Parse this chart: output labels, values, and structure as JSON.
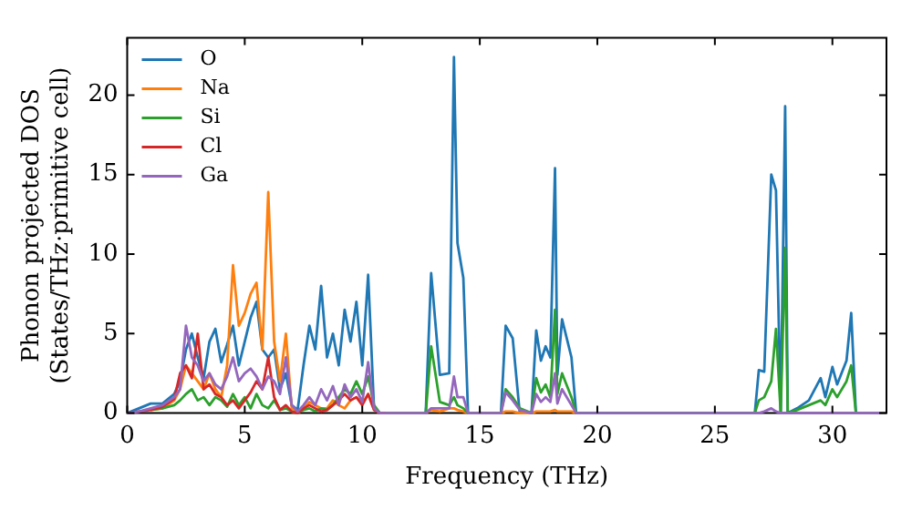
{
  "chart_data": {
    "type": "line",
    "xlabel": "Frequency (THz)",
    "ylabel": "Phonon projected DOS\n(States/THz·primitive cell)",
    "x": [
      0,
      0.5,
      1,
      1.5,
      2,
      2.25,
      2.5,
      2.75,
      3,
      3.25,
      3.5,
      3.75,
      4,
      4.25,
      4.5,
      4.75,
      5,
      5.25,
      5.5,
      5.75,
      6,
      6.25,
      6.5,
      6.75,
      7,
      7.25,
      7.5,
      7.75,
      8,
      8.25,
      8.5,
      8.75,
      9,
      9.25,
      9.5,
      9.75,
      10,
      10.25,
      10.5,
      10.75,
      11,
      12.7,
      12.93,
      13.3,
      13.7,
      13.9,
      14.05,
      14.3,
      14.5,
      15.9,
      16.1,
      16.4,
      16.7,
      17.2,
      17.4,
      17.6,
      17.8,
      18.0,
      18.2,
      18.3,
      18.5,
      18.9,
      19.1,
      26.7,
      26.87,
      27.1,
      27.4,
      27.6,
      27.8,
      27.99,
      28.1,
      28.5,
      29,
      29.5,
      29.7,
      30.0,
      30.2,
      30.6,
      30.8,
      31.0,
      32
    ],
    "series": [
      {
        "name": "O",
        "color": "#1f77b4",
        "values": [
          0,
          0.3,
          0.6,
          0.6,
          1.2,
          2,
          4,
          5,
          3.5,
          2.2,
          4.5,
          5.3,
          3.2,
          4.3,
          5.5,
          3,
          4.5,
          6,
          7,
          4,
          3.5,
          4,
          1.5,
          2.5,
          0.5,
          0.2,
          3,
          5.5,
          4,
          8,
          3.5,
          5,
          3,
          6.5,
          4.5,
          7,
          3,
          8.7,
          0.3,
          0,
          0,
          0,
          8.8,
          2.4,
          2.5,
          22.4,
          10.7,
          8.5,
          0,
          0,
          5.5,
          4.7,
          0,
          0,
          5.2,
          3.3,
          4.2,
          3.5,
          15.4,
          2.4,
          5.9,
          3.5,
          0,
          0,
          2.7,
          2.6,
          15,
          14,
          0,
          19.3,
          0,
          0.3,
          0.8,
          2.2,
          1.0,
          2.9,
          1.8,
          3.3,
          6.3,
          0,
          null
        ]
      },
      {
        "name": "Na",
        "color": "#ff7f0e",
        "values": [
          null,
          null,
          0.2,
          0.3,
          0.8,
          1.5,
          3,
          2.5,
          2,
          1.5,
          2.5,
          1.5,
          1,
          3,
          9.3,
          5.5,
          6.3,
          7.5,
          8.2,
          4,
          13.9,
          4.5,
          2,
          5,
          0.3,
          0.1,
          0.3,
          0.7,
          0.5,
          0.3,
          0.3,
          0.8,
          0.5,
          0.3,
          0.8,
          1,
          0.6,
          1.2,
          0.2,
          0,
          0,
          0,
          0.2,
          0.1,
          0.3,
          0.3,
          0.2,
          0.1,
          0,
          0,
          0.1,
          0.1,
          0,
          0,
          0.1,
          0.1,
          0.1,
          0.1,
          0.2,
          0.1,
          0.1,
          0.1,
          0,
          null,
          null,
          null,
          null,
          null,
          null,
          null,
          null,
          null,
          null,
          null,
          null,
          null,
          null,
          null,
          null,
          null,
          null
        ]
      },
      {
        "name": "Si",
        "color": "#2ca02c",
        "values": [
          null,
          null,
          0.2,
          0.3,
          0.5,
          0.8,
          1.2,
          1.5,
          0.8,
          1.0,
          0.5,
          1.0,
          0.8,
          0.4,
          1.2,
          0.5,
          1.0,
          0.3,
          1.2,
          0.5,
          0.3,
          0.8,
          0.2,
          0.3,
          0.1,
          0,
          0.2,
          0.3,
          0.1,
          0.3,
          0.2,
          0.5,
          1,
          1.5,
          1.2,
          2,
          1.2,
          2.3,
          0.5,
          0,
          0,
          0,
          4.2,
          0.7,
          0.5,
          1,
          0.5,
          0.3,
          0,
          0,
          1.5,
          1,
          0.3,
          0,
          2.2,
          1.3,
          1.8,
          1.0,
          6.5,
          1.2,
          2.5,
          1.0,
          0,
          0,
          0.8,
          1.0,
          2,
          5.3,
          0,
          10.4,
          0,
          0.2,
          0.5,
          0.8,
          0.5,
          1.5,
          1.0,
          2,
          3.0,
          0,
          null
        ]
      },
      {
        "name": "Cl",
        "color": "#d62728",
        "values": [
          0,
          0.1,
          0.2,
          0.4,
          0.9,
          2.5,
          3,
          2.2,
          5,
          1.5,
          1.8,
          1.2,
          1,
          0.5,
          0.8,
          0.3,
          0.8,
          1.3,
          2,
          1.5,
          3.5,
          1,
          0.2,
          0.5,
          0.1,
          0,
          0.3,
          0.5,
          0.3,
          0.1,
          0.2,
          0.5,
          0.8,
          1.2,
          0.8,
          1,
          0.5,
          1.2,
          0.2,
          0,
          0,
          null,
          null,
          null,
          null,
          null,
          null,
          null,
          null,
          null,
          null,
          null,
          null,
          null,
          null,
          null,
          null,
          null,
          null,
          null,
          null,
          null,
          null,
          null,
          null,
          null,
          null,
          null,
          null,
          null,
          null,
          null,
          null,
          null,
          null,
          null,
          null,
          null,
          null,
          null,
          null
        ]
      },
      {
        "name": "Ga",
        "color": "#9467bd",
        "values": [
          0,
          0.1,
          0.3,
          0.5,
          1,
          1.5,
          5.5,
          3.5,
          3,
          2,
          2.5,
          1.8,
          1.5,
          2.3,
          3.5,
          2,
          2.5,
          2.8,
          2.3,
          1.5,
          2.3,
          2,
          1.2,
          3.5,
          0.5,
          0.1,
          0.5,
          1,
          0.5,
          1.5,
          0.8,
          1.7,
          0.5,
          1.8,
          1,
          1.5,
          0.7,
          3.2,
          0.3,
          0,
          0,
          0,
          0.3,
          0.3,
          0.3,
          2.3,
          1,
          1,
          0,
          0,
          1.3,
          0.8,
          0.2,
          0,
          1.2,
          0.7,
          1,
          0.7,
          2.5,
          0.6,
          1.5,
          0.5,
          0,
          0,
          0,
          0.1,
          0.3,
          0.1,
          0,
          0,
          0,
          0,
          0,
          0,
          0,
          0,
          0,
          0,
          0,
          0,
          0
        ]
      }
    ],
    "xlim": [
      0,
      32.3
    ],
    "ylim": [
      0,
      23.6
    ],
    "xticks": [
      0,
      5,
      10,
      15,
      20,
      25,
      30
    ],
    "yticks": [
      0,
      5,
      10,
      15,
      20
    ],
    "legend": "top left",
    "grid": false,
    "marker": "none",
    "line_style": "solid"
  }
}
